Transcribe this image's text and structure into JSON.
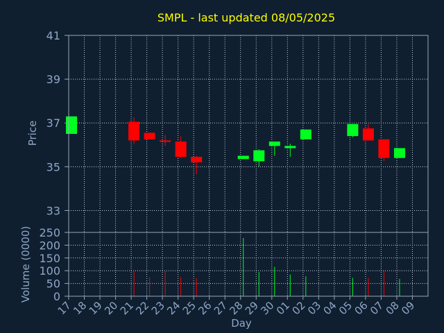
{
  "title": "SMPL - last updated 08/05/2025",
  "colors": {
    "background": "#0f1f30",
    "title": "#ffff00",
    "axis_text": "#8fa6c7",
    "frame": "#9aa7b8",
    "grid": "#c8d0da",
    "up": "#00ff21",
    "down": "#ff0000"
  },
  "chart_data": [
    {
      "type": "candlestick",
      "title": "SMPL - last updated 08/05/2025",
      "ylabel": "Price",
      "ylim": [
        32,
        41
      ],
      "yticks": [
        33,
        35,
        37,
        39,
        41
      ],
      "grid": true,
      "categories": [
        "17",
        "18",
        "19",
        "20",
        "21",
        "22",
        "23",
        "24",
        "25",
        "26",
        "27",
        "28",
        "29",
        "30",
        "01",
        "02",
        "03",
        "04",
        "05",
        "06",
        "07",
        "08",
        "09"
      ],
      "candles": [
        {
          "day": "17",
          "open": 36.5,
          "high": 37.3,
          "low": 36.5,
          "close": 37.3
        },
        {
          "day": "21",
          "open": 37.05,
          "high": 37.25,
          "low": 36.05,
          "close": 36.2
        },
        {
          "day": "22",
          "open": 36.55,
          "high": 36.55,
          "low": 36.25,
          "close": 36.25
        },
        {
          "day": "23",
          "open": 36.2,
          "high": 36.45,
          "low": 35.95,
          "close": 36.15
        },
        {
          "day": "24",
          "open": 36.15,
          "high": 36.4,
          "low": 35.4,
          "close": 35.45
        },
        {
          "day": "25",
          "open": 35.45,
          "high": 35.5,
          "low": 34.65,
          "close": 35.2
        },
        {
          "day": "28",
          "open": 35.35,
          "high": 35.5,
          "low": 35.35,
          "close": 35.5
        },
        {
          "day": "29",
          "open": 35.25,
          "high": 35.8,
          "low": 35.0,
          "close": 35.75
        },
        {
          "day": "30",
          "open": 35.95,
          "high": 36.15,
          "low": 35.5,
          "close": 36.15
        },
        {
          "day": "01",
          "open": 35.85,
          "high": 36.05,
          "low": 35.45,
          "close": 35.95
        },
        {
          "day": "02",
          "open": 36.25,
          "high": 36.7,
          "low": 36.25,
          "close": 36.7
        },
        {
          "day": "05",
          "open": 36.4,
          "high": 36.95,
          "low": 36.35,
          "close": 36.95
        },
        {
          "day": "06",
          "open": 36.75,
          "high": 36.95,
          "low": 36.2,
          "close": 36.2
        },
        {
          "day": "07",
          "open": 36.25,
          "high": 36.25,
          "low": 35.25,
          "close": 35.4
        },
        {
          "day": "08",
          "open": 35.4,
          "high": 35.85,
          "low": 35.4,
          "close": 35.85
        }
      ]
    },
    {
      "type": "bar",
      "ylabel": "Volume (0000)",
      "xlabel": "Day",
      "ylim": [
        0,
        250
      ],
      "yticks": [
        0,
        50,
        100,
        150,
        200,
        250
      ],
      "grid": true,
      "categories": [
        "17",
        "18",
        "19",
        "20",
        "21",
        "22",
        "23",
        "24",
        "25",
        "26",
        "27",
        "28",
        "29",
        "30",
        "01",
        "02",
        "03",
        "04",
        "05",
        "06",
        "07",
        "08",
        "09"
      ],
      "bars": [
        {
          "day": "21",
          "value": 100,
          "direction": "down"
        },
        {
          "day": "22",
          "value": 75,
          "direction": "down"
        },
        {
          "day": "23",
          "value": 100,
          "direction": "down"
        },
        {
          "day": "24",
          "value": 75,
          "direction": "down"
        },
        {
          "day": "25",
          "value": 70,
          "direction": "down"
        },
        {
          "day": "28",
          "value": 228,
          "direction": "up"
        },
        {
          "day": "29",
          "value": 95,
          "direction": "up"
        },
        {
          "day": "30",
          "value": 115,
          "direction": "up"
        },
        {
          "day": "01",
          "value": 85,
          "direction": "up"
        },
        {
          "day": "02",
          "value": 78,
          "direction": "up"
        },
        {
          "day": "05",
          "value": 72,
          "direction": "up"
        },
        {
          "day": "06",
          "value": 72,
          "direction": "down"
        },
        {
          "day": "07",
          "value": 100,
          "direction": "down"
        },
        {
          "day": "08",
          "value": 68,
          "direction": "up"
        }
      ]
    }
  ]
}
